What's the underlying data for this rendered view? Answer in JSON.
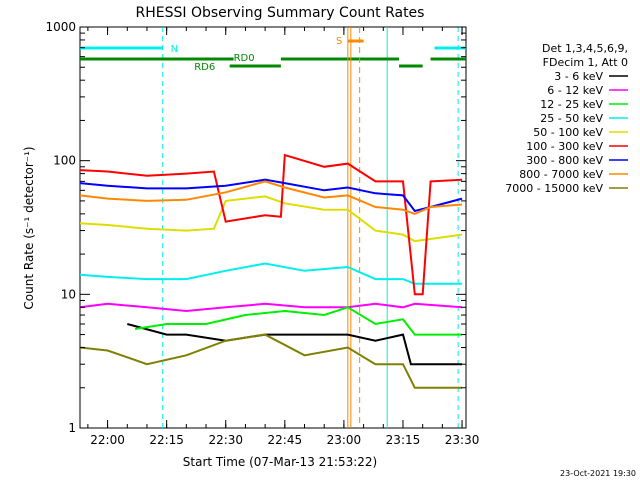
{
  "chart_data": {
    "type": "line",
    "title": "RHESSI Observing Summary Count Rates",
    "xlabel": "Start Time (07-Mar-13 21:53:22)",
    "ylabel": "Count Rate (s⁻¹ detector⁻¹)",
    "yscale": "log",
    "ylim": [
      1,
      1000
    ],
    "xlim": [
      "21:53",
      "23:31"
    ],
    "y_tick_labels": [
      "1",
      "10",
      "100",
      "1000"
    ],
    "x_tick_labels": [
      "22:00",
      "22:15",
      "22:30",
      "22:45",
      "23:00",
      "23:15",
      "23:30"
    ],
    "legend_header": [
      "Det 1,3,4,5,6,9,",
      "FDecim 1, Att 0"
    ],
    "legend_placement": "right",
    "series": [
      {
        "name": "3 - 6 keV",
        "color": "#000000",
        "points": [
          [
            "22:05",
            6
          ],
          [
            "22:15",
            5
          ],
          [
            "22:20",
            5
          ],
          [
            "22:30",
            4.5
          ],
          [
            "22:40",
            5
          ],
          [
            "22:50",
            5
          ],
          [
            "23:01",
            5
          ],
          [
            "23:08",
            4.5
          ],
          [
            "23:15",
            5
          ],
          [
            "23:17",
            3
          ],
          [
            "23:30",
            3
          ]
        ]
      },
      {
        "name": "6 - 12 keV",
        "color": "#ff00ff",
        "points": [
          [
            "21:53",
            8
          ],
          [
            "22:00",
            8.5
          ],
          [
            "22:10",
            8
          ],
          [
            "22:20",
            7.5
          ],
          [
            "22:30",
            8
          ],
          [
            "22:40",
            8.5
          ],
          [
            "22:50",
            8
          ],
          [
            "23:01",
            8
          ],
          [
            "23:08",
            8.5
          ],
          [
            "23:15",
            8
          ],
          [
            "23:18",
            8.5
          ],
          [
            "23:30",
            8
          ]
        ]
      },
      {
        "name": "12 - 25 keV",
        "color": "#00ee00",
        "points": [
          [
            "22:07",
            5.5
          ],
          [
            "22:15",
            6
          ],
          [
            "22:25",
            6
          ],
          [
            "22:35",
            7
          ],
          [
            "22:45",
            7.5
          ],
          [
            "22:55",
            7
          ],
          [
            "23:01",
            8
          ],
          [
            "23:08",
            6
          ],
          [
            "23:15",
            6.5
          ],
          [
            "23:18",
            5
          ],
          [
            "23:30",
            5
          ]
        ]
      },
      {
        "name": "25 - 50 keV",
        "color": "#00eeee",
        "points": [
          [
            "21:53",
            14
          ],
          [
            "22:00",
            13.5
          ],
          [
            "22:10",
            13
          ],
          [
            "22:20",
            13
          ],
          [
            "22:30",
            15
          ],
          [
            "22:40",
            17
          ],
          [
            "22:50",
            15
          ],
          [
            "23:01",
            16
          ],
          [
            "23:08",
            13
          ],
          [
            "23:15",
            13
          ],
          [
            "23:18",
            12
          ],
          [
            "23:30",
            12
          ]
        ]
      },
      {
        "name": "50 - 100 keV",
        "color": "#dddd00",
        "points": [
          [
            "21:53",
            34
          ],
          [
            "22:00",
            33
          ],
          [
            "22:10",
            31
          ],
          [
            "22:20",
            30
          ],
          [
            "22:27",
            31
          ],
          [
            "22:30",
            50
          ],
          [
            "22:40",
            54
          ],
          [
            "22:45",
            48
          ],
          [
            "22:55",
            43
          ],
          [
            "23:01",
            43
          ],
          [
            "23:08",
            30
          ],
          [
            "23:15",
            28
          ],
          [
            "23:18",
            25
          ],
          [
            "23:30",
            28
          ]
        ]
      },
      {
        "name": "100 - 300 keV",
        "color": "#ff0000",
        "points": [
          [
            "21:53",
            85
          ],
          [
            "22:00",
            83
          ],
          [
            "22:10",
            77
          ],
          [
            "22:20",
            80
          ],
          [
            "22:27",
            83
          ],
          [
            "22:30",
            35
          ],
          [
            "22:40",
            39
          ],
          [
            "22:44",
            38
          ],
          [
            "22:45",
            110
          ],
          [
            "22:55",
            90
          ],
          [
            "23:01",
            95
          ],
          [
            "23:08",
            70
          ],
          [
            "23:15",
            70
          ],
          [
            "23:18",
            10
          ],
          [
            "23:20",
            10
          ],
          [
            "23:22",
            70
          ],
          [
            "23:30",
            72
          ]
        ]
      },
      {
        "name": "300 - 800 keV",
        "color": "#0000ff",
        "points": [
          [
            "21:53",
            68
          ],
          [
            "22:00",
            65
          ],
          [
            "22:10",
            62
          ],
          [
            "22:20",
            62
          ],
          [
            "22:30",
            65
          ],
          [
            "22:40",
            72
          ],
          [
            "22:45",
            68
          ],
          [
            "22:55",
            60
          ],
          [
            "23:01",
            63
          ],
          [
            "23:08",
            57
          ],
          [
            "23:15",
            55
          ],
          [
            "23:18",
            42
          ],
          [
            "23:22",
            45
          ],
          [
            "23:30",
            52
          ]
        ]
      },
      {
        "name": "800 - 7000 keV",
        "color": "#ff8800",
        "points": [
          [
            "21:53",
            55
          ],
          [
            "22:00",
            52
          ],
          [
            "22:10",
            50
          ],
          [
            "22:20",
            51
          ],
          [
            "22:30",
            58
          ],
          [
            "22:40",
            70
          ],
          [
            "22:45",
            63
          ],
          [
            "22:55",
            53
          ],
          [
            "23:01",
            55
          ],
          [
            "23:08",
            45
          ],
          [
            "23:15",
            43
          ],
          [
            "23:18",
            40
          ],
          [
            "23:22",
            45
          ],
          [
            "23:30",
            47
          ]
        ]
      },
      {
        "name": "7000 - 15000 keV",
        "color": "#808000",
        "points": [
          [
            "21:53",
            4
          ],
          [
            "22:00",
            3.8
          ],
          [
            "22:10",
            3
          ],
          [
            "22:20",
            3.5
          ],
          [
            "22:30",
            4.5
          ],
          [
            "22:40",
            5
          ],
          [
            "22:50",
            3.5
          ],
          [
            "23:01",
            4
          ],
          [
            "23:08",
            3
          ],
          [
            "23:15",
            3
          ],
          [
            "23:18",
            2
          ],
          [
            "23:30",
            2
          ]
        ]
      }
    ],
    "flag_labels": [
      "N",
      "RD0",
      "RD6",
      "S"
    ],
    "timestamp": "23-Oct-2021 19:30"
  }
}
